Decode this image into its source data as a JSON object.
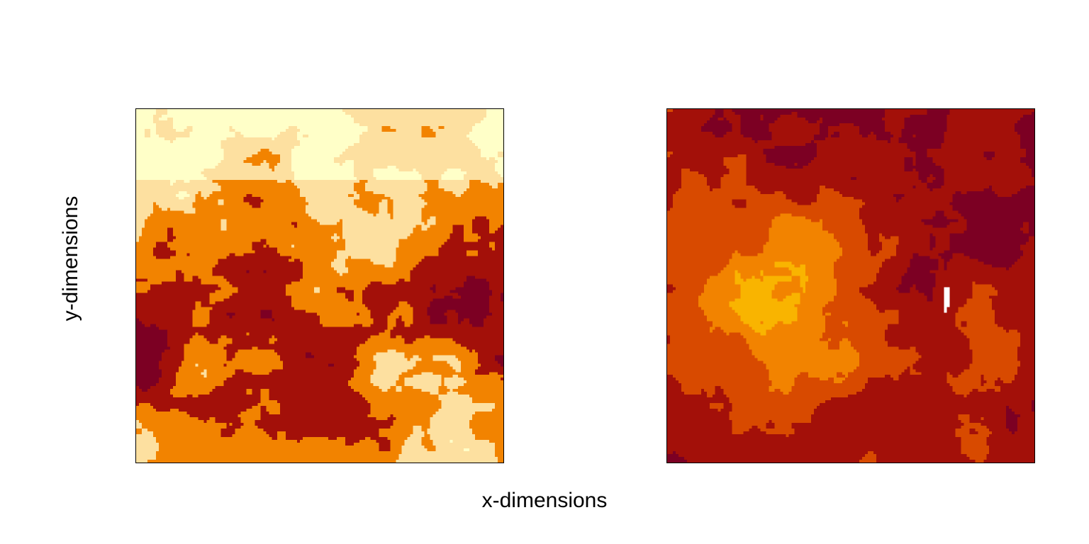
{
  "chart_data": {
    "type": "heatmap",
    "xlabel": "x-dimensions",
    "ylabel": "y-dimensions",
    "grid": false,
    "legend": "none",
    "panels": [
      {
        "name": "",
        "categorical_levels": 5,
        "palette": [
          "#ffffc8",
          "#fde0a0",
          "#f28300",
          "#a31009",
          "#7c0023"
        ],
        "pattern": "clustered random field: pale yellow and orange patches upper area, dark red / maroon mass across middle-lower area"
      },
      {
        "name": "",
        "categorical_levels": 5,
        "palette": [
          "#ffffff",
          "#f9b400",
          "#f28300",
          "#d84a00",
          "#a31009",
          "#7c0023"
        ],
        "pattern": "clustered random field: orange core lower-left, dark red surrounding upper-right, small white gap on right"
      }
    ]
  }
}
